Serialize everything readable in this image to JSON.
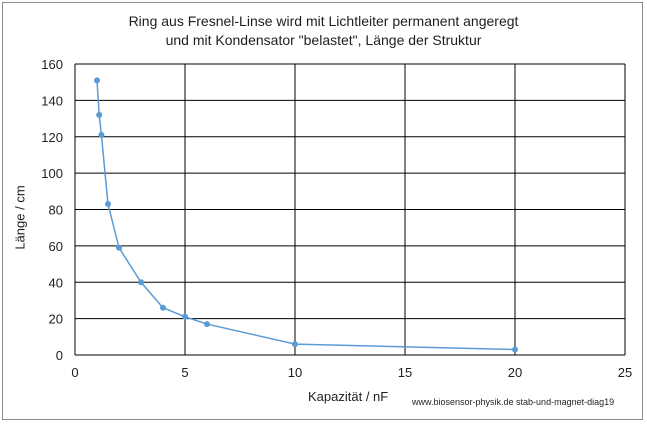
{
  "chart_data": {
    "type": "line",
    "title": [
      "Ring aus Fresnel-Linse wird mit Lichtleiter permanent angeregt",
      "und mit Kondensator \"belastet\", Länge der Struktur"
    ],
    "xlabel": "Kapazität / nF",
    "ylabel": "Länge / cm",
    "xlim": [
      0,
      25
    ],
    "ylim": [
      0,
      160
    ],
    "xticks": [
      0,
      5,
      10,
      15,
      20,
      25
    ],
    "yticks": [
      0,
      20,
      40,
      60,
      80,
      100,
      120,
      140,
      160
    ],
    "grid": true,
    "markers": true,
    "series_color": "#5b9bd5",
    "series": [
      {
        "x": [
          1.0,
          1.1,
          1.2,
          1.5,
          2.0,
          3.0,
          4.0,
          5.0,
          6.0,
          10.0,
          20.0
        ],
        "y": [
          151,
          132,
          121,
          83,
          59,
          40,
          26,
          21,
          17,
          6,
          3
        ]
      }
    ],
    "source_note": "www.biosensor-physik.de  stab-und-magnet-diag19"
  }
}
